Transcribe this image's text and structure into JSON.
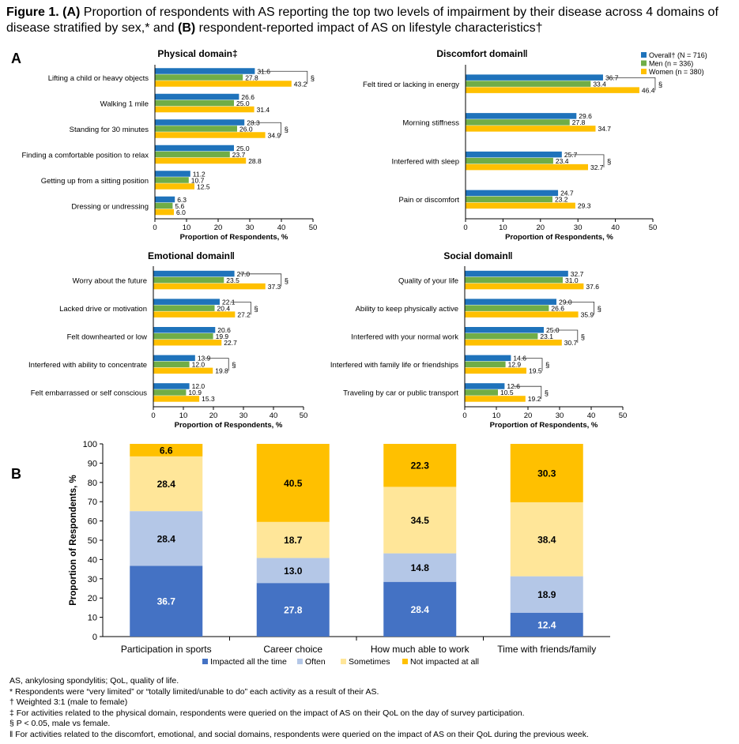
{
  "figure": {
    "label": "Figure 1.",
    "a_tag": "(A)",
    "text1": " Proportion of respondents with AS reporting the top two levels of impairment by their disease across 4 domains of disease stratified by sex,* and ",
    "b_tag": "(B)",
    "text2": " respondent-reported impact of AS on lifestyle characteristics†"
  },
  "panel_a_letter": "A",
  "panel_b_letter": "B",
  "colors": {
    "overall": "#1F73BB",
    "men": "#70AD47",
    "women": "#FFC000",
    "all_the_time": "#4472C4",
    "often": "#B4C7E7",
    "sometimes": "#FFE699",
    "not_impacted": "#FFC000"
  },
  "chart_data": [
    {
      "type": "bar",
      "orientation": "horizontal",
      "title": "Physical domain‡",
      "xlabel": "Proportion of Respondents, %",
      "xlim": [
        0,
        50
      ],
      "xticks": [
        "0",
        "10",
        "20",
        "30",
        "40",
        "50"
      ],
      "categories": [
        "Lifting a child or heavy objects",
        "Walking 1 mile",
        "Standing for 30 minutes",
        "Finding a comfortable position to relax",
        "Getting up from a sitting position",
        "Dressing or undressing"
      ],
      "series": [
        {
          "name": "Overall† (N = 716)",
          "values": [
            31.6,
            26.6,
            28.3,
            25.0,
            11.2,
            6.3
          ]
        },
        {
          "name": "Men (n = 336)",
          "values": [
            27.8,
            25.0,
            26.0,
            23.7,
            10.7,
            5.6
          ]
        },
        {
          "name": "Women (n = 380)",
          "values": [
            43.2,
            31.4,
            34.9,
            28.8,
            12.5,
            6.0
          ]
        }
      ],
      "data_labels": [
        [
          "31.6",
          "27.8",
          "43.2"
        ],
        [
          "26.6",
          "25.0",
          "31.4"
        ],
        [
          "28.3",
          "26.0",
          "34.9"
        ],
        [
          "25.0",
          "23.7",
          "28.8"
        ],
        [
          "11.2",
          "10.7",
          "12.5"
        ],
        [
          "6.3",
          "5.6",
          "6.0"
        ]
      ],
      "significant": [
        true,
        false,
        true,
        false,
        false,
        false
      ],
      "sig_mark": "§"
    },
    {
      "type": "bar",
      "orientation": "horizontal",
      "title": "Discomfort domain‖",
      "xlabel": "Proportion of Respondents, %",
      "xlim": [
        0,
        50
      ],
      "xticks": [
        "0",
        "10",
        "20",
        "30",
        "40",
        "50"
      ],
      "categories": [
        "Felt tired or lacking in energy",
        "Morning stiffness",
        "Interfered with sleep",
        "Pain or discomfort"
      ],
      "series": [
        {
          "name": "Overall† (N = 716)",
          "values": [
            36.7,
            29.6,
            25.7,
            24.7
          ]
        },
        {
          "name": "Men (n = 336)",
          "values": [
            33.4,
            27.8,
            23.4,
            23.2
          ]
        },
        {
          "name": "Women (n = 380)",
          "values": [
            46.4,
            34.7,
            32.7,
            29.3
          ]
        }
      ],
      "data_labels": [
        [
          "36.7",
          "33.4",
          "46.4"
        ],
        [
          "29.6",
          "27.8",
          "34.7"
        ],
        [
          "25.7",
          "23.4",
          "32.7"
        ],
        [
          "24.7",
          "23.2",
          "29.3"
        ]
      ],
      "significant": [
        true,
        false,
        true,
        false
      ],
      "sig_mark": "§",
      "legend": [
        "Overall† (N = 716)",
        "Men (n = 336)",
        "Women (n = 380)"
      ],
      "legend_position": "top-right"
    },
    {
      "type": "bar",
      "orientation": "horizontal",
      "title": "Emotional domain‖",
      "xlabel": "Proportion of Respondents, %",
      "xlim": [
        0,
        50
      ],
      "xticks": [
        "0",
        "10",
        "20",
        "30",
        "40",
        "50"
      ],
      "categories": [
        "Worry about the future",
        "Lacked drive or motivation",
        "Felt downhearted or low",
        "Interfered with ability to concentrate",
        "Felt embarrassed or self conscious"
      ],
      "series": [
        {
          "name": "Overall† (N = 716)",
          "values": [
            27.0,
            22.1,
            20.6,
            13.9,
            12.0
          ]
        },
        {
          "name": "Men (n = 336)",
          "values": [
            23.5,
            20.4,
            19.9,
            12.0,
            10.9
          ]
        },
        {
          "name": "Women (n = 380)",
          "values": [
            37.3,
            27.2,
            22.7,
            19.8,
            15.3
          ]
        }
      ],
      "data_labels": [
        [
          "27.0",
          "23.5",
          "37.3"
        ],
        [
          "22.1",
          "20.4",
          "27.2"
        ],
        [
          "20.6",
          "19.9",
          "22.7"
        ],
        [
          "13.9",
          "12.0",
          "19.8"
        ],
        [
          "12.0",
          "10.9",
          "15.3"
        ]
      ],
      "significant": [
        true,
        true,
        false,
        true,
        false
      ],
      "sig_mark": "§"
    },
    {
      "type": "bar",
      "orientation": "horizontal",
      "title": "Social domain‖",
      "xlabel": "Proportion of Respondents, %",
      "xlim": [
        0,
        50
      ],
      "xticks": [
        "0",
        "10",
        "20",
        "30",
        "40",
        "50"
      ],
      "categories": [
        "Quality of your life",
        "Ability to keep physically active",
        "Interfered with your normal work",
        "Interfered with family life or friendships",
        "Traveling by car or public transport"
      ],
      "series": [
        {
          "name": "Overall† (N = 716)",
          "values": [
            32.7,
            29.0,
            25.0,
            14.6,
            12.6
          ]
        },
        {
          "name": "Men (n = 336)",
          "values": [
            31.0,
            26.6,
            23.1,
            12.9,
            10.5
          ]
        },
        {
          "name": "Women (n = 380)",
          "values": [
            37.6,
            35.9,
            30.7,
            19.5,
            19.2
          ]
        }
      ],
      "data_labels": [
        [
          "32.7",
          "31.0",
          "37.6"
        ],
        [
          "29.0",
          "26.6",
          "35.9"
        ],
        [
          "25.0",
          "23.1",
          "30.7"
        ],
        [
          "14.6",
          "12.9",
          "19.5"
        ],
        [
          "12.6",
          "10.5",
          "19.2"
        ]
      ],
      "significant": [
        false,
        true,
        true,
        true,
        true
      ],
      "sig_mark": "§"
    },
    {
      "type": "bar",
      "orientation": "vertical",
      "stacked": true,
      "title": "",
      "ylabel": "Proportion of Respondents, %",
      "ylim": [
        0,
        100
      ],
      "yticks": [
        "0",
        "10",
        "20",
        "30",
        "40",
        "50",
        "60",
        "70",
        "80",
        "90",
        "100"
      ],
      "categories": [
        "Participation in sports",
        "Career choice",
        "How much able to work",
        "Time with friends/family"
      ],
      "series": [
        {
          "name": "Impacted all the time",
          "values": [
            36.7,
            27.8,
            28.4,
            12.4
          ]
        },
        {
          "name": "Often",
          "values": [
            28.4,
            13.0,
            14.8,
            18.9
          ]
        },
        {
          "name": "Sometimes",
          "values": [
            28.4,
            18.7,
            34.5,
            38.4
          ]
        },
        {
          "name": "Not impacted at all",
          "values": [
            6.6,
            40.5,
            22.3,
            30.3
          ]
        }
      ],
      "data_labels": [
        [
          "36.7",
          "28.4",
          "28.4",
          "6.6"
        ],
        [
          "27.8",
          "13.0",
          "18.7",
          "40.5"
        ],
        [
          "28.4",
          "14.8",
          "34.5",
          "22.3"
        ],
        [
          "12.4",
          "18.9",
          "38.4",
          "30.3"
        ]
      ],
      "legend": [
        "Impacted all the time",
        "Often",
        "Sometimes",
        "Not impacted at all"
      ],
      "legend_position": "bottom"
    }
  ],
  "footnotes": [
    "AS, ankylosing spondylitis; QoL, quality of life.",
    "* Respondents were “very limited” or “totally limited/unable to do” each activity as a result of their AS.",
    "† Weighted 3:1 (male to female)",
    "‡ For activities related to the physical domain, respondents were queried on the impact of AS on their QoL on the day of survey participation.",
    "§ P < 0.05, male vs female.",
    "‖ For activities related to the discomfort, emotional, and social domains, respondents were queried on the impact of AS on their QoL during the previous week."
  ]
}
